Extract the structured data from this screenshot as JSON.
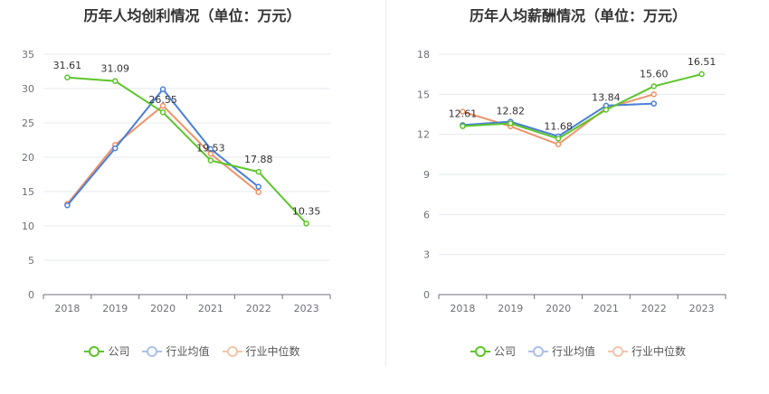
{
  "charts": [
    {
      "title": "历年人均创利情况（单位：万元）",
      "chart_data": {
        "type": "line",
        "categories": [
          "2018",
          "2019",
          "2020",
          "2021",
          "2022",
          "2023"
        ],
        "ylim": [
          0,
          35
        ],
        "yticks": [
          0,
          5,
          10,
          15,
          20,
          25,
          30,
          35
        ],
        "series": [
          {
            "name": "公司",
            "color": "#5cc52a",
            "values": [
              31.61,
              31.09,
              26.55,
              19.53,
              17.88,
              10.35
            ],
            "labels": [
              "31.61",
              "31.09",
              "26.55",
              "19.53",
              "17.88",
              "10.35"
            ]
          },
          {
            "name": "行业均值",
            "color": "#4a7fd8",
            "values": [
              13.0,
              21.3,
              29.9,
              21.2,
              15.7,
              null
            ]
          },
          {
            "name": "行业中位数",
            "color": "#ef936a",
            "values": [
              13.2,
              21.8,
              27.5,
              20.5,
              14.9,
              null
            ]
          }
        ]
      }
    },
    {
      "title": "历年人均薪酬情况（单位：万元）",
      "chart_data": {
        "type": "line",
        "categories": [
          "2018",
          "2019",
          "2020",
          "2021",
          "2022",
          "2023"
        ],
        "ylim": [
          0,
          18
        ],
        "yticks": [
          0,
          3,
          6,
          9,
          12,
          15,
          18
        ],
        "series": [
          {
            "name": "公司",
            "color": "#5cc52a",
            "values": [
              12.61,
              12.82,
              11.68,
              13.84,
              15.6,
              16.51
            ],
            "labels": [
              "12.61",
              "12.82",
              "11.68",
              "13.84",
              "15.60",
              "16.51"
            ]
          },
          {
            "name": "行业均值",
            "color": "#4a7fd8",
            "values": [
              12.7,
              12.95,
              11.85,
              14.15,
              14.3,
              null
            ]
          },
          {
            "name": "行业中位数",
            "color": "#ef936a",
            "values": [
              13.7,
              12.6,
              11.25,
              13.95,
              15.0,
              null
            ]
          }
        ]
      }
    }
  ],
  "legend": [
    {
      "label": "公司",
      "color": "#5cc52a"
    },
    {
      "label": "行业均值",
      "color": "#4a7fd8"
    },
    {
      "label": "行业中位数",
      "color": "#ef936a"
    }
  ]
}
